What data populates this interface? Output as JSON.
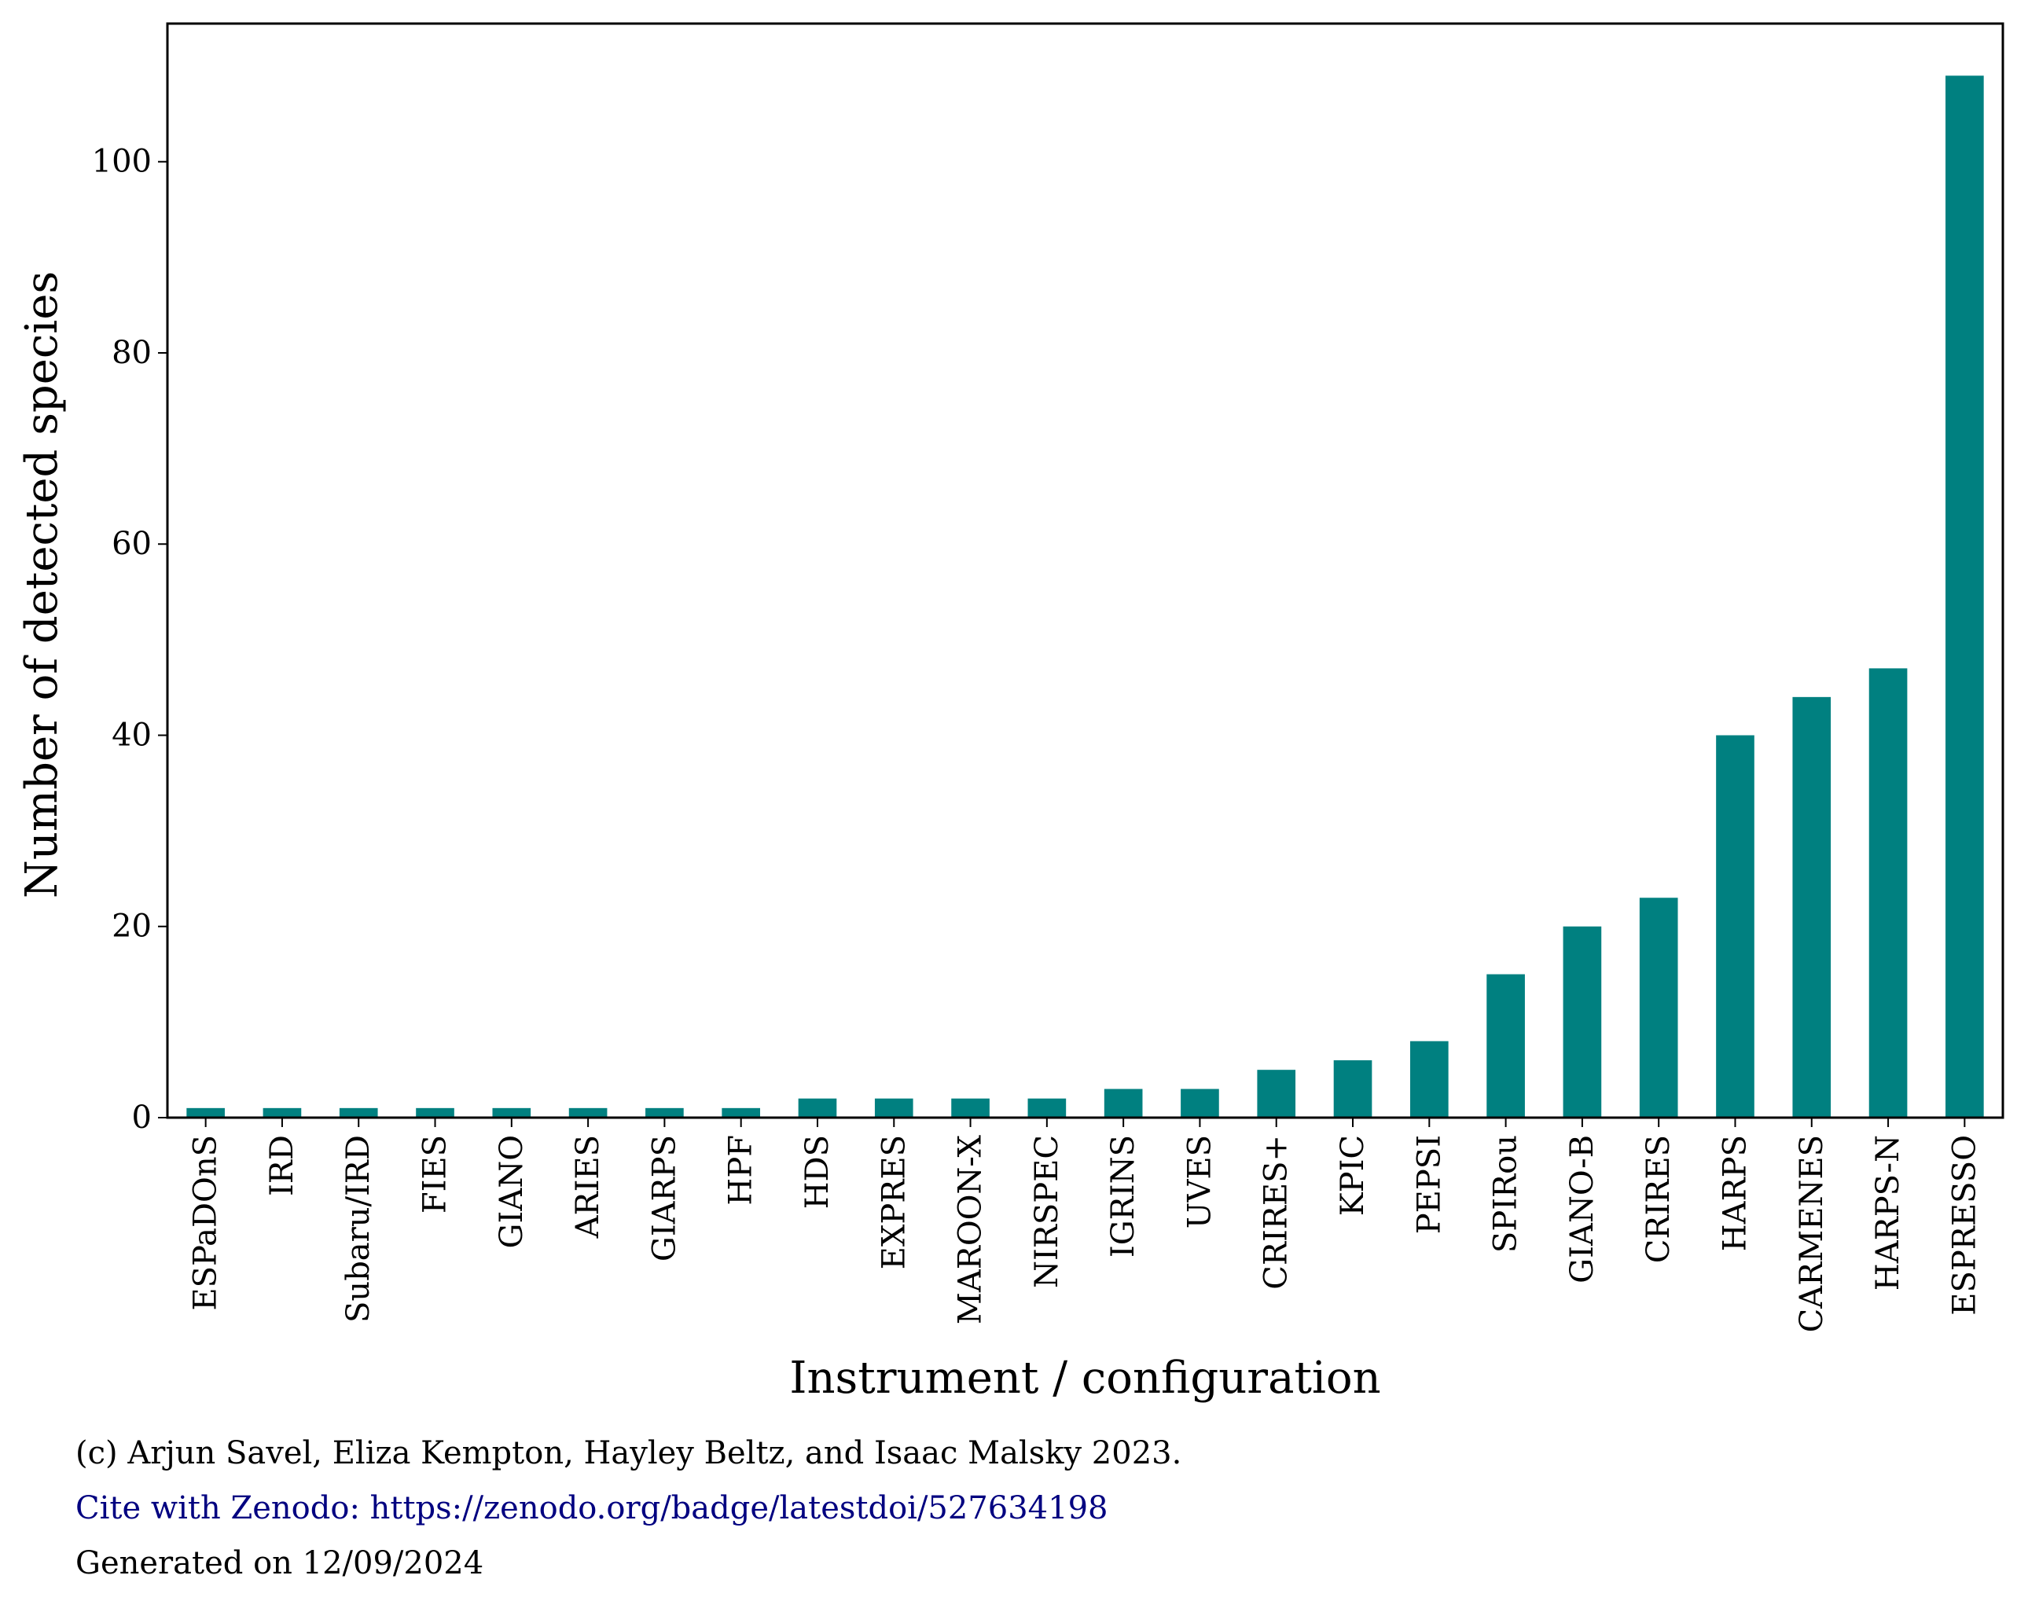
{
  "chart_data": {
    "type": "bar",
    "categories": [
      "ESPaDOnS",
      "IRD",
      "Subaru/IRD",
      "FIES",
      "GIANO",
      "ARIES",
      "GIARPS",
      "HPF",
      "HDS",
      "EXPRES",
      "MAROON-X",
      "NIRSPEC",
      "IGRINS",
      "UVES",
      "CRIRES+",
      "KPIC",
      "PEPSI",
      "SPIRou",
      "GIANO-B",
      "CRIRES",
      "HARPS",
      "CARMENES",
      "HARPS-N",
      "ESPRESSO"
    ],
    "values": [
      1,
      1,
      1,
      1,
      1,
      1,
      1,
      1,
      2,
      2,
      2,
      2,
      3,
      3,
      5,
      6,
      8,
      15,
      20,
      23,
      40,
      44,
      47,
      109
    ],
    "xlabel": "Instrument / configuration",
    "ylabel": "Number of detected species",
    "ylim": [
      0,
      114.45
    ],
    "yticks": [
      0,
      20,
      40,
      60,
      80,
      100
    ],
    "grid": false,
    "colors": {
      "bar": "#008080",
      "axis": "#000000"
    }
  },
  "footer": {
    "copyright": "(c) Arjun Savel, Eliza Kempton, Hayley Beltz, and Isaac Malsky 2023.",
    "cite": "Cite with Zenodo: https://zenodo.org/badge/latestdoi/527634198",
    "generated": "Generated on 12/09/2024"
  }
}
